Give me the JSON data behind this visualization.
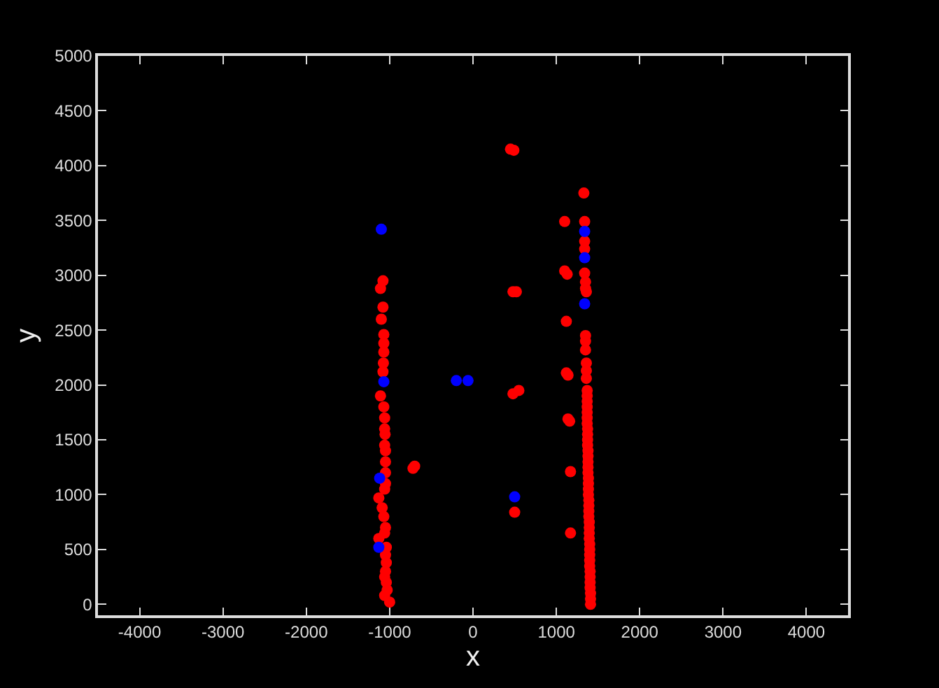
{
  "chart_data": {
    "type": "scatter",
    "xlabel": "x",
    "ylabel": "y",
    "xlim": [
      -4500,
      4500
    ],
    "ylim": [
      -100,
      5000
    ],
    "xticks": [
      -4000,
      -3000,
      -2000,
      -1000,
      0,
      1000,
      2000,
      3000,
      4000
    ],
    "yticks": [
      0,
      500,
      1000,
      1500,
      2000,
      2500,
      3000,
      3500,
      4000,
      4500,
      5000
    ],
    "grid": false,
    "marker": "circle",
    "series": [
      {
        "color": "#ff0000",
        "x": [
          -1080,
          -1110,
          -1080,
          -1100,
          -1070,
          -1070,
          -1070,
          -1075,
          -1080,
          -1110,
          -1070,
          -1060,
          -1060,
          -1055,
          -1060,
          -1050,
          -1050,
          -1050,
          -1050,
          -1060,
          -1130,
          -1090,
          -1070,
          -1050,
          -1060,
          -1130,
          -1040,
          -1050,
          -1040,
          -1050,
          -1060,
          -1040,
          -1030,
          -1060,
          -1000,
          -700,
          -720,
          450,
          490,
          480,
          520,
          480,
          550,
          500,
          1100,
          1100,
          1130,
          1120,
          1120,
          1140,
          1140,
          1160,
          1170,
          1170,
          1330,
          1340,
          1340,
          1340,
          1340,
          1350,
          1350,
          1360,
          1350,
          1350,
          1350,
          1360,
          1360,
          1360,
          1370,
          1370,
          1370,
          1370,
          1370,
          1370,
          1370,
          1375,
          1375,
          1375,
          1375,
          1380,
          1380,
          1380,
          1380,
          1380,
          1385,
          1385,
          1385,
          1385,
          1390,
          1390,
          1390,
          1390,
          1395,
          1395,
          1395,
          1395,
          1400,
          1400,
          1400,
          1400,
          1400,
          1405,
          1405,
          1405,
          1405,
          1410,
          1410,
          1410
        ],
        "values": [
          2950,
          2880,
          2710,
          2600,
          2460,
          2380,
          2300,
          2200,
          2120,
          1900,
          1800,
          1700,
          1600,
          1550,
          1450,
          1400,
          1300,
          1200,
          1100,
          1050,
          970,
          880,
          800,
          700,
          650,
          600,
          520,
          450,
          380,
          300,
          250,
          200,
          130,
          80,
          20,
          1260,
          1240,
          4150,
          4140,
          2850,
          2850,
          1920,
          1950,
          840,
          3490,
          3040,
          3010,
          2580,
          2110,
          2090,
          1690,
          1670,
          1210,
          650,
          3750,
          3490,
          3310,
          3240,
          3020,
          2940,
          2880,
          2850,
          2450,
          2400,
          2320,
          2200,
          2130,
          2060,
          1950,
          1900,
          1850,
          1800,
          1750,
          1700,
          1650,
          1600,
          1550,
          1500,
          1450,
          1400,
          1350,
          1300,
          1250,
          1200,
          1150,
          1100,
          1050,
          1000,
          950,
          900,
          850,
          800,
          750,
          700,
          650,
          600,
          550,
          500,
          450,
          400,
          350,
          300,
          250,
          200,
          150,
          100,
          50,
          0
        ]
      },
      {
        "color": "#0000ff",
        "x": [
          -1100,
          -1070,
          -1120,
          -1130,
          -200,
          -60,
          500,
          1340,
          1340,
          1340
        ],
        "values": [
          3420,
          2030,
          1150,
          520,
          2040,
          2040,
          980,
          3400,
          3160,
          2740
        ]
      }
    ]
  }
}
